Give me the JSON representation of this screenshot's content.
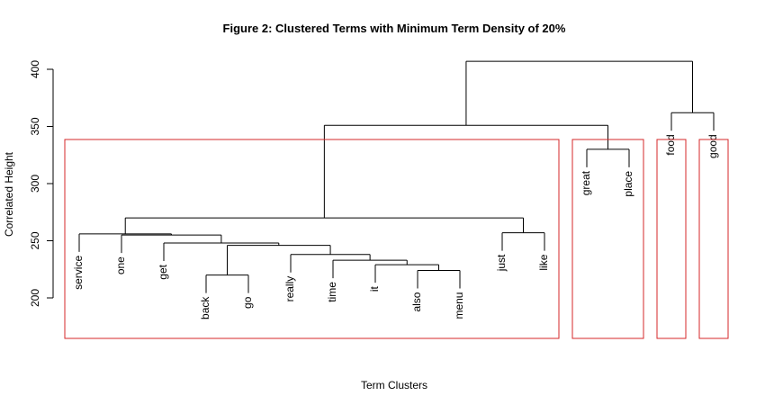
{
  "chart_data": {
    "type": "dendrogram",
    "title": "Figure 2: Clustered Terms with Minimum Term Density of 20%",
    "xlabel": "Term Clusters",
    "ylabel": "Correlated Height",
    "ylim": [
      200,
      400
    ],
    "yticks": [
      200,
      250,
      300,
      350,
      400
    ],
    "leaves": [
      "service",
      "one",
      "get",
      "back",
      "go",
      "really",
      "time",
      "it",
      "also",
      "menu",
      "just",
      "like",
      "great",
      "place",
      "food",
      "good"
    ],
    "merges": [
      {
        "children": [
          "L:back",
          "L:go"
        ],
        "height": 220
      },
      {
        "children": [
          "L:also",
          "L:menu"
        ],
        "height": 224
      },
      {
        "children": [
          "L:it",
          "M:2"
        ],
        "height": 229
      },
      {
        "children": [
          "L:time",
          "M:3"
        ],
        "height": 233
      },
      {
        "children": [
          "L:really",
          "M:4"
        ],
        "height": 238
      },
      {
        "children": [
          "M:1",
          "M:5"
        ],
        "height": 246
      },
      {
        "children": [
          "L:get",
          "M:6"
        ],
        "height": 248
      },
      {
        "children": [
          "L:one",
          "M:7"
        ],
        "height": 255
      },
      {
        "children": [
          "L:service",
          "M:8"
        ],
        "height": 256
      },
      {
        "children": [
          "L:just",
          "L:like"
        ],
        "height": 257
      },
      {
        "children": [
          "M:9",
          "M:10"
        ],
        "height": 270
      },
      {
        "children": [
          "L:great",
          "L:place"
        ],
        "height": 330
      },
      {
        "children": [
          "M:11",
          "M:12"
        ],
        "height": 351
      },
      {
        "children": [
          "L:food",
          "L:good"
        ],
        "height": 362
      },
      {
        "children": [
          "M:13",
          "M:14"
        ],
        "height": 407
      }
    ],
    "clusters": [
      [
        "service",
        "one",
        "get",
        "back",
        "go",
        "really",
        "time",
        "it",
        "also",
        "menu",
        "just",
        "like"
      ],
      [
        "great",
        "place"
      ],
      [
        "food"
      ],
      [
        "good"
      ]
    ],
    "cluster_color": "#d62728",
    "line_color": "#000000"
  }
}
